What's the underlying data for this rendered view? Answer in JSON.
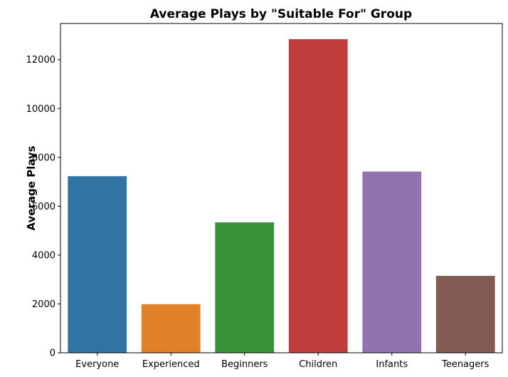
{
  "chart_data": {
    "type": "bar",
    "title": "Average Plays by \"Suitable For\" Group",
    "xlabel": "",
    "ylabel": "Average Plays",
    "categories": [
      "Everyone",
      "Experienced",
      "Beginners",
      "Children",
      "Infants",
      "Teenagers"
    ],
    "values": [
      7230,
      1990,
      5340,
      12840,
      7420,
      3150
    ],
    "colors": [
      "#3274a1",
      "#e1812c",
      "#3a923a",
      "#c03d3e",
      "#9372b2",
      "#845b53"
    ],
    "ylim": [
      0,
      13480
    ],
    "yticks": [
      0,
      2000,
      4000,
      6000,
      8000,
      10000,
      12000
    ],
    "grid": false,
    "legend": "none"
  }
}
